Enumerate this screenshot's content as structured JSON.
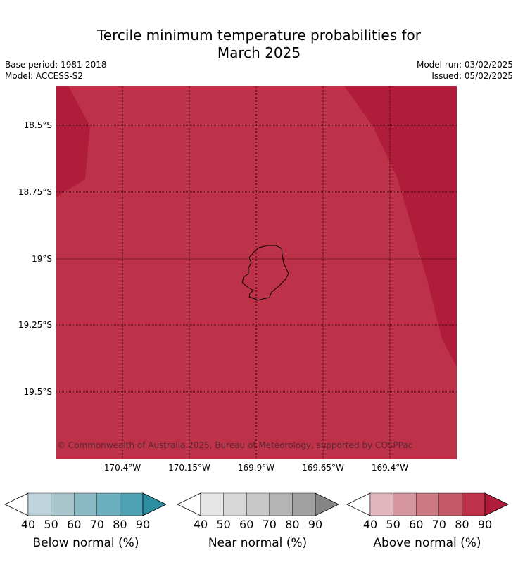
{
  "title_line1": "Tercile minimum temperature probabilities for",
  "title_line2": "March 2025",
  "base_period": "Base period: 1981-2018",
  "model": "Model: ACCESS-S2",
  "model_run": "Model run: 03/02/2025",
  "issued": "Issued: 05/02/2025",
  "copyright": "© Commonwealth of Australia 2025, Bureau of Meteorology, supported by COSPPac",
  "latitudes": [
    "18.5°S",
    "18.75°S",
    "19°S",
    "19.25°S",
    "19.5°S"
  ],
  "longitudes": [
    "170.4°W",
    "170.15°W",
    "169.9°W",
    "169.65°W",
    "169.4°W"
  ],
  "colors": {
    "above_70_80": "#be3249",
    "above_80_90": "#b01d3a",
    "coastline": "#000000"
  },
  "colorbars": [
    {
      "label": "Below normal (%)",
      "ticks": [
        "40",
        "50",
        "60",
        "70",
        "80",
        "90"
      ],
      "colors": [
        "#bfd3da",
        "#a8c6cc",
        "#8ab8c4",
        "#6baebd",
        "#4da1b2",
        "#2d8ea2"
      ]
    },
    {
      "label": "Near normal (%)",
      "ticks": [
        "40",
        "50",
        "60",
        "70",
        "80",
        "90"
      ],
      "colors": [
        "#e6e6e6",
        "#d8d8d8",
        "#c8c8c8",
        "#b4b4b4",
        "#a1a1a1",
        "#868686"
      ]
    },
    {
      "label": "Above normal (%)",
      "ticks": [
        "40",
        "50",
        "60",
        "70",
        "80",
        "90"
      ],
      "colors": [
        "#e1b6bd",
        "#d6969f",
        "#cd7a82",
        "#c45a67",
        "#be3249",
        "#b01d3a"
      ]
    }
  ]
}
